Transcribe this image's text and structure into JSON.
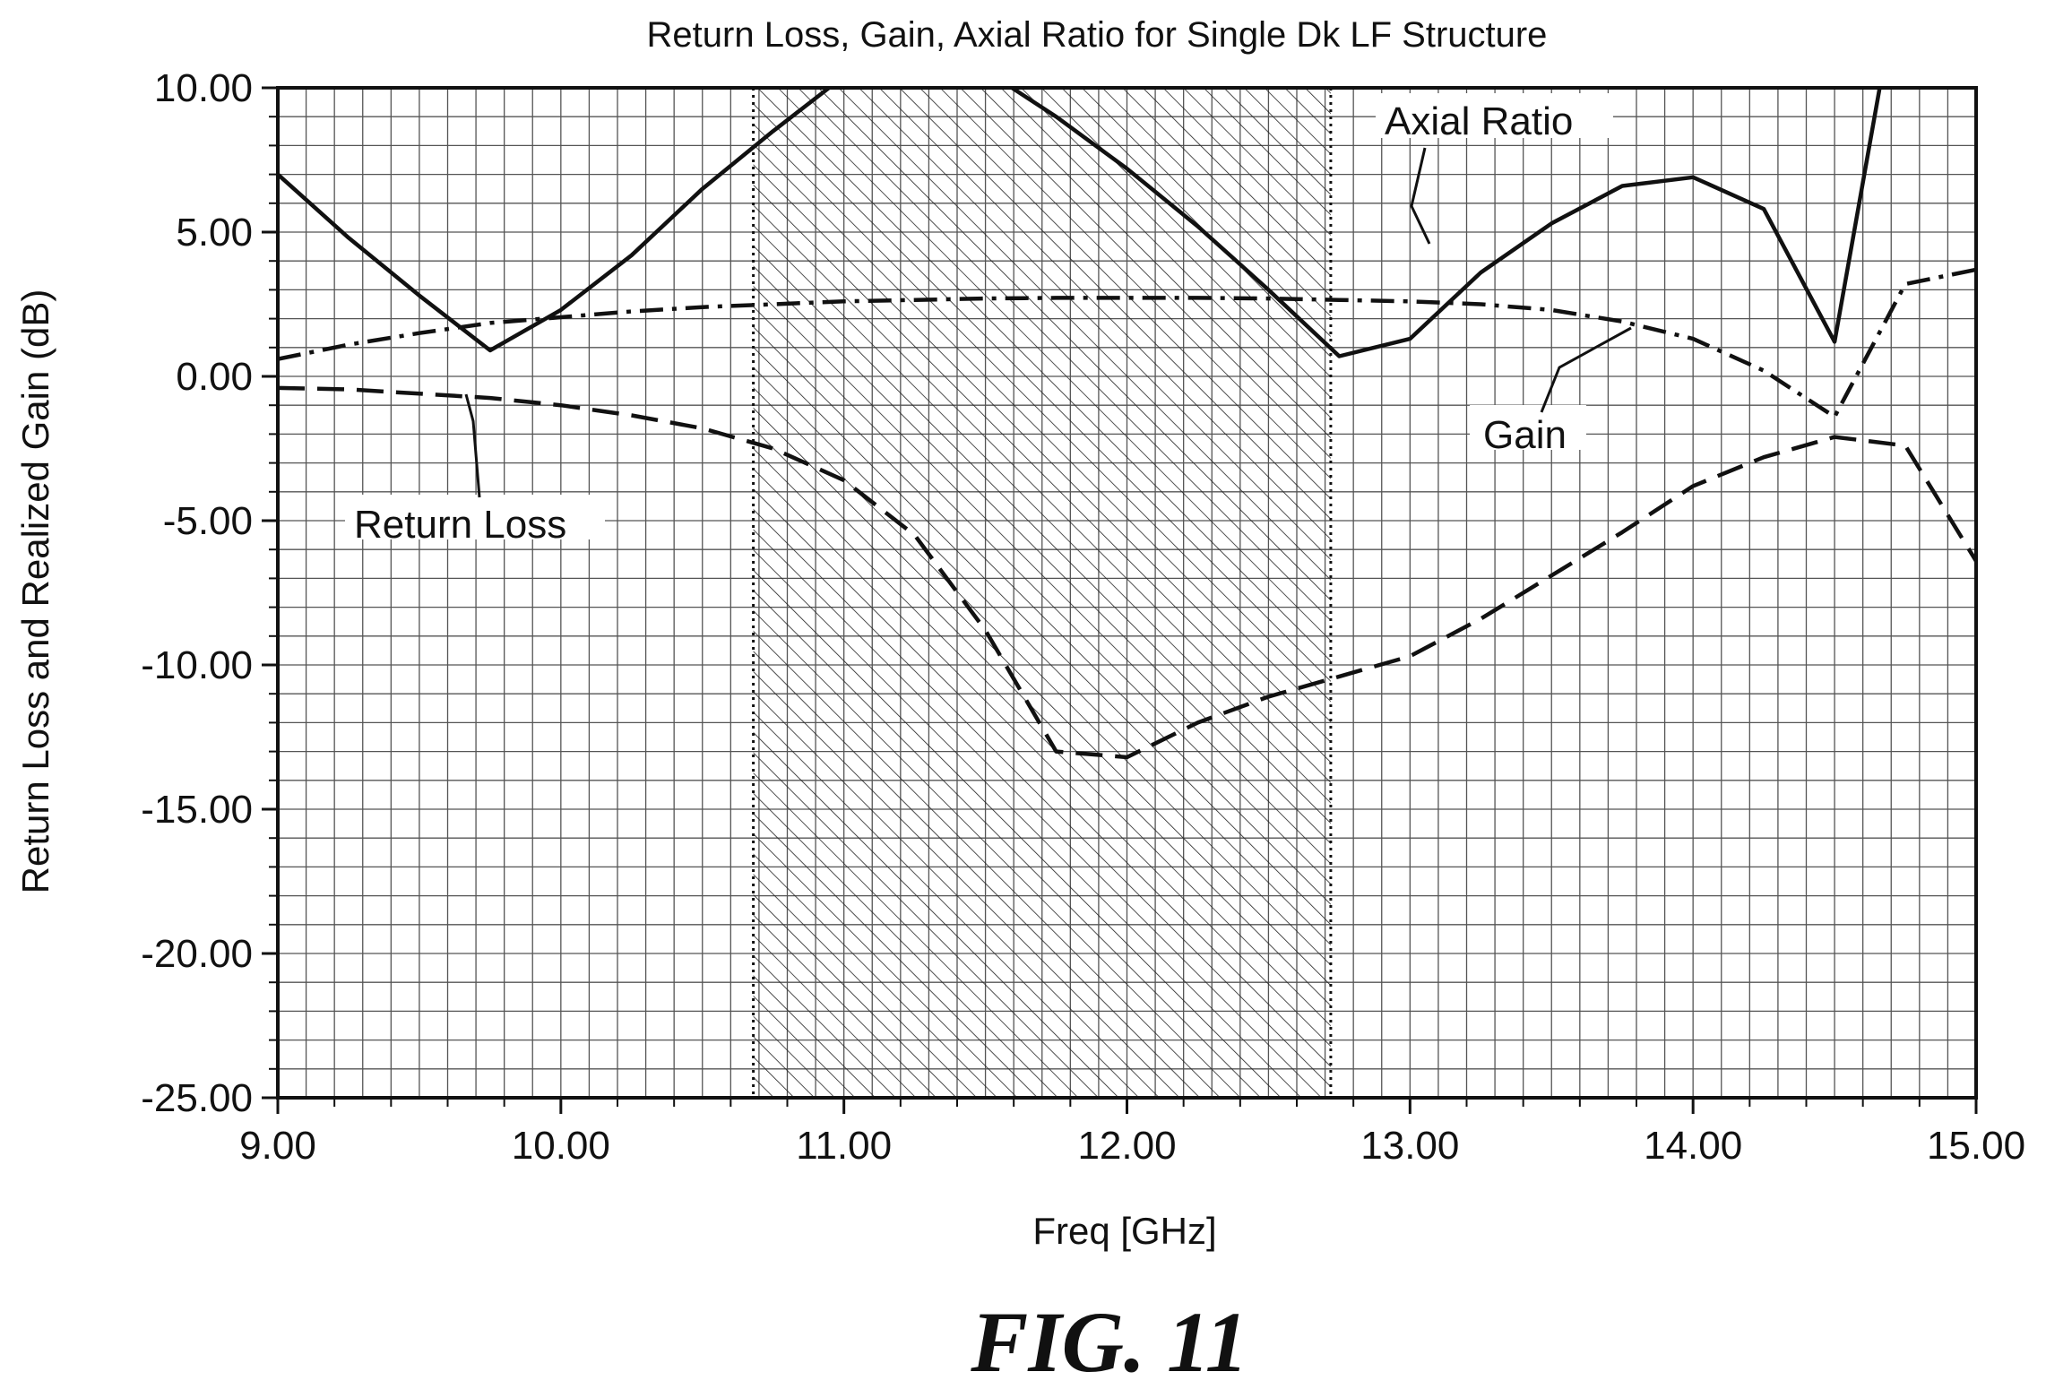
{
  "figure_caption": "FIG. 11",
  "chart_data": {
    "type": "line",
    "title": "Return Loss, Gain, Axial Ratio for Single Dk LF Structure",
    "xlabel": "Freq [GHz]",
    "ylabel": "Return Loss and Realized Gain (dB)",
    "xlim": [
      9.0,
      15.0
    ],
    "ylim": [
      -25.0,
      10.0
    ],
    "xticks": [
      "9.00",
      "10.00",
      "11.00",
      "12.00",
      "13.00",
      "14.00",
      "15.00"
    ],
    "yticks": [
      "10.00",
      "5.00",
      "0.00",
      "-5.00",
      "-10.00",
      "-15.00",
      "-20.00",
      "-25.00"
    ],
    "grid": true,
    "shaded_band": {
      "x_start": 10.68,
      "x_end": 12.72,
      "style": "hatched"
    },
    "series": [
      {
        "name": "Axial Ratio",
        "style": "solid",
        "x": [
          9.0,
          9.25,
          9.5,
          9.75,
          10.0,
          10.25,
          10.5,
          10.75,
          11.0,
          11.25,
          11.5,
          11.75,
          12.0,
          12.25,
          12.5,
          12.75,
          13.0,
          13.25,
          13.5,
          13.75,
          14.0,
          14.25,
          14.5,
          14.75
        ],
        "y": [
          7.0,
          4.8,
          2.8,
          0.9,
          2.3,
          4.2,
          6.5,
          8.5,
          10.4,
          11.2,
          10.6,
          9.0,
          7.2,
          5.2,
          3.0,
          0.7,
          1.3,
          3.6,
          5.3,
          6.6,
          6.9,
          5.8,
          1.2,
          15.0
        ],
        "label": {
          "text": "Axial Ratio"
        }
      },
      {
        "name": "Gain",
        "style": "dash-dot",
        "x": [
          9.0,
          9.25,
          9.5,
          9.75,
          10.0,
          10.25,
          10.5,
          10.75,
          11.0,
          11.25,
          11.5,
          11.75,
          12.0,
          12.25,
          12.5,
          12.75,
          13.0,
          13.25,
          13.5,
          13.75,
          14.0,
          14.25,
          14.5,
          14.75,
          15.0
        ],
        "y": [
          0.6,
          1.1,
          1.5,
          1.85,
          2.05,
          2.25,
          2.4,
          2.5,
          2.6,
          2.65,
          2.7,
          2.72,
          2.72,
          2.72,
          2.7,
          2.65,
          2.6,
          2.5,
          2.3,
          1.9,
          1.3,
          0.2,
          -1.4,
          3.2,
          3.7
        ],
        "label": {
          "text": "Gain"
        }
      },
      {
        "name": "Return Loss",
        "style": "dashed",
        "x": [
          9.0,
          9.25,
          9.5,
          9.75,
          10.0,
          10.25,
          10.5,
          10.75,
          11.0,
          11.25,
          11.5,
          11.75,
          12.0,
          12.25,
          12.5,
          12.75,
          13.0,
          13.25,
          13.5,
          13.75,
          14.0,
          14.25,
          14.5,
          14.75,
          15.0
        ],
        "y": [
          -0.4,
          -0.45,
          -0.6,
          -0.75,
          -1.0,
          -1.35,
          -1.8,
          -2.5,
          -3.6,
          -5.5,
          -8.8,
          -13.0,
          -13.2,
          -12.0,
          -11.1,
          -10.4,
          -9.7,
          -8.4,
          -6.9,
          -5.4,
          -3.8,
          -2.8,
          -2.1,
          -2.4,
          -6.4
        ],
        "label": {
          "text": "Return Loss"
        }
      }
    ]
  }
}
